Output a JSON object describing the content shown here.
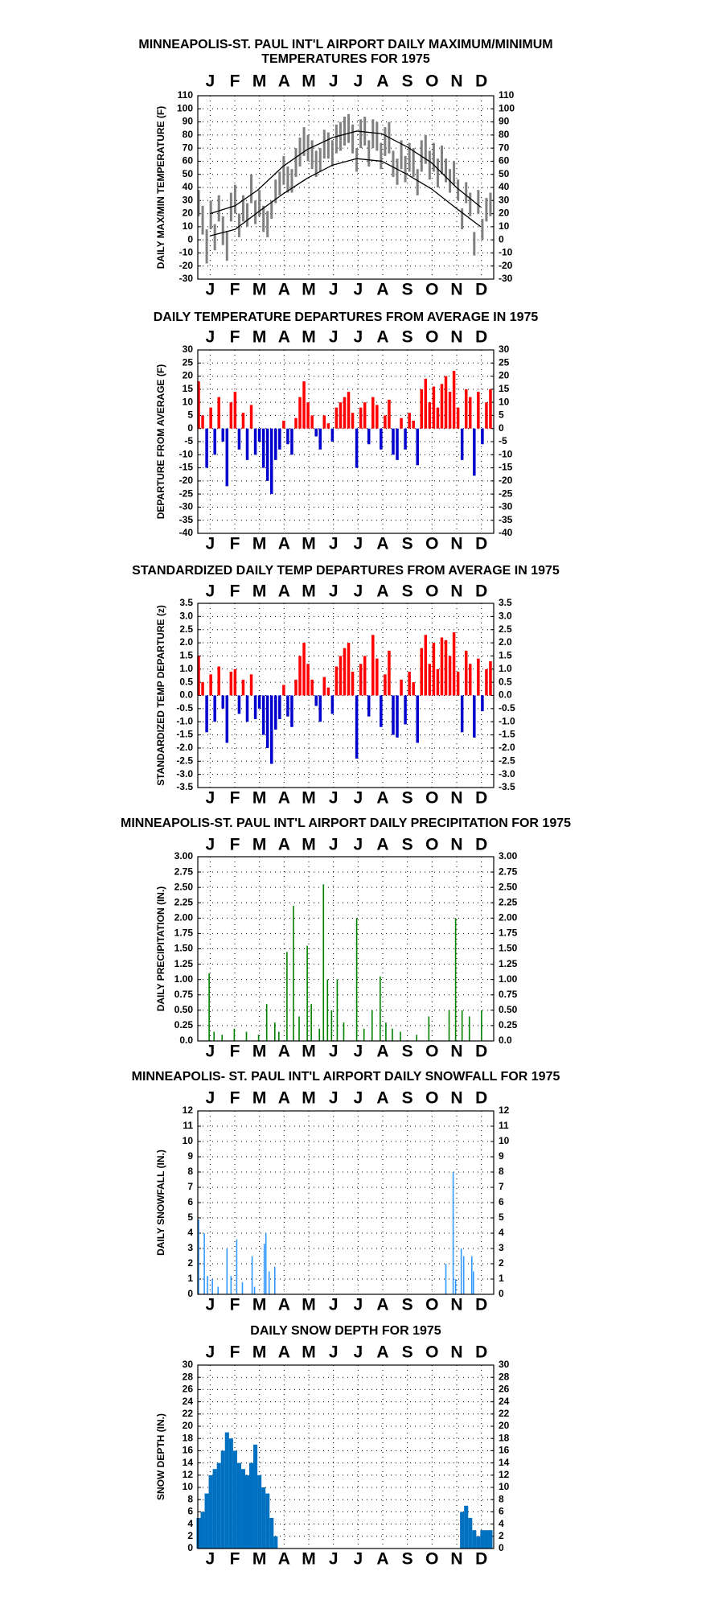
{
  "chart_data": [
    {
      "type": "range",
      "title": [
        "MINNEAPOLIS-ST. PAUL INT'L AIRPORT DAILY MAXIMUM/MINIMUM",
        "TEMPERATURES FOR 1975"
      ],
      "y_label": "DAILY MAX/MIN TEMPERATURE (F)",
      "categories": [
        "J",
        "F",
        "M",
        "A",
        "M",
        "J",
        "J",
        "A",
        "S",
        "O",
        "N",
        "D"
      ],
      "xlim": [
        0,
        365
      ],
      "ylim": [
        -30,
        110
      ],
      "yticks": [
        -30,
        -20,
        -10,
        0,
        10,
        20,
        30,
        40,
        50,
        60,
        70,
        80,
        90,
        100,
        110
      ],
      "x": [
        1,
        6,
        11,
        16,
        21,
        26,
        31,
        36,
        41,
        46,
        51,
        56,
        61,
        66,
        71,
        76,
        81,
        86,
        91,
        96,
        101,
        106,
        111,
        116,
        121,
        126,
        131,
        136,
        141,
        146,
        151,
        156,
        161,
        166,
        171,
        176,
        181,
        186,
        191,
        196,
        201,
        206,
        211,
        216,
        221,
        226,
        231,
        236,
        241,
        246,
        251,
        256,
        261,
        266,
        271,
        276,
        281,
        286,
        291,
        296,
        301,
        306,
        311,
        316,
        321,
        326,
        331,
        336,
        341,
        346,
        351,
        356,
        361
      ],
      "series": [
        {
          "color": "#808080",
          "values": [
            38,
            26,
            8,
            30,
            12,
            34,
            18,
            6,
            36,
            42,
            20,
            34,
            28,
            50,
            30,
            38,
            26,
            22,
            30,
            46,
            52,
            64,
            56,
            54,
            70,
            78,
            86,
            80,
            76,
            68,
            70,
            84,
            82,
            76,
            88,
            90,
            94,
            96,
            88,
            70,
            92,
            94,
            76,
            92,
            90,
            74,
            86,
            90,
            68,
            62,
            76,
            64,
            74,
            70,
            54,
            76,
            80,
            68,
            74,
            62,
            72,
            62,
            54,
            60,
            46,
            24,
            44,
            36,
            6,
            38,
            16,
            32,
            36
          ]
        },
        {
          "color": "#808080",
          "values": [
            18,
            4,
            -18,
            8,
            -8,
            14,
            -4,
            -16,
            14,
            20,
            2,
            14,
            10,
            28,
            12,
            18,
            6,
            2,
            16,
            28,
            34,
            42,
            36,
            36,
            48,
            56,
            64,
            60,
            54,
            48,
            52,
            62,
            62,
            56,
            66,
            68,
            72,
            74,
            66,
            52,
            70,
            72,
            56,
            70,
            68,
            54,
            64,
            66,
            48,
            42,
            54,
            44,
            52,
            48,
            34,
            52,
            58,
            46,
            52,
            40,
            50,
            44,
            36,
            42,
            30,
            8,
            28,
            18,
            -12,
            20,
            0,
            14,
            18
          ]
        }
      ],
      "normals": {
        "x": [
          15,
          46,
          74,
          105,
          135,
          166,
          196,
          227,
          258,
          288,
          319,
          349
        ],
        "series": [
          {
            "color": "#000000",
            "values": [
              20,
              26,
              38,
              56,
              69,
              78,
              83,
              81,
              71,
              59,
              40,
              25
            ]
          },
          {
            "color": "#000000",
            "values": [
              3,
              8,
              21,
              35,
              47,
              57,
              62,
              60,
              50,
              39,
              24,
              10
            ]
          }
        ]
      }
    },
    {
      "type": "bar",
      "title": "DAILY TEMPERATURE DEPARTURES FROM AVERAGE IN 1975",
      "y_label": "DEPARTURE FROM AVERAGE (F)",
      "categories": [
        "J",
        "F",
        "M",
        "A",
        "M",
        "J",
        "J",
        "A",
        "S",
        "O",
        "N",
        "D"
      ],
      "xlim": [
        0,
        365
      ],
      "ylim": [
        -40,
        30
      ],
      "yticks": [
        -40,
        -35,
        -30,
        -25,
        -20,
        -15,
        -10,
        -5,
        0,
        5,
        10,
        15,
        20,
        25,
        30
      ],
      "color": "#ff0000",
      "negative_color": "#0000cc",
      "x": [
        1,
        6,
        11,
        16,
        21,
        26,
        31,
        36,
        41,
        46,
        51,
        56,
        61,
        66,
        71,
        76,
        81,
        86,
        91,
        96,
        101,
        106,
        111,
        116,
        121,
        126,
        131,
        136,
        141,
        146,
        151,
        156,
        161,
        166,
        171,
        176,
        181,
        186,
        191,
        196,
        201,
        206,
        211,
        216,
        221,
        226,
        231,
        236,
        241,
        246,
        251,
        256,
        261,
        266,
        271,
        276,
        281,
        286,
        291,
        296,
        301,
        306,
        311,
        316,
        321,
        326,
        331,
        336,
        341,
        346,
        351,
        356,
        361
      ],
      "values": [
        18,
        5,
        -15,
        8,
        -10,
        12,
        -5,
        -22,
        10,
        14,
        -8,
        6,
        -12,
        9,
        -10,
        -5,
        -15,
        -20,
        -25,
        -12,
        -8,
        3,
        -6,
        -10,
        4,
        12,
        18,
        10,
        5,
        -3,
        -8,
        5,
        2,
        -5,
        8,
        10,
        12,
        14,
        6,
        -15,
        8,
        10,
        -6,
        12,
        9,
        -8,
        5,
        11,
        -10,
        -12,
        4,
        -8,
        6,
        3,
        -14,
        15,
        19,
        10,
        16,
        8,
        17,
        20,
        14,
        22,
        8,
        -12,
        15,
        12,
        -18,
        14,
        -6,
        10,
        15
      ]
    },
    {
      "type": "bar",
      "title": "STANDARDIZED DAILY TEMP DEPARTURES FROM AVERAGE IN 1975",
      "y_label": "STANDARDIZED TEMP DEPARTURE (z)",
      "categories": [
        "J",
        "F",
        "M",
        "A",
        "M",
        "J",
        "J",
        "A",
        "S",
        "O",
        "N",
        "D"
      ],
      "xlim": [
        0,
        365
      ],
      "ylim": [
        -3.5,
        3.5
      ],
      "yticks": [
        -3.5,
        {
          "value": -3,
          "label": "-3.0"
        },
        -2.5,
        {
          "value": -2,
          "label": "-2.0"
        },
        -1.5,
        {
          "value": -1,
          "label": "-1.0"
        },
        -0.5,
        {
          "value": 0,
          "label": "0.0"
        },
        0.5,
        {
          "value": 1,
          "label": "1.0"
        },
        1.5,
        {
          "value": 2,
          "label": "2.0"
        },
        2.5,
        {
          "value": 3,
          "label": "3.0"
        },
        3.5
      ],
      "color": "#ff0000",
      "negative_color": "#0000cc",
      "x": [
        1,
        6,
        11,
        16,
        21,
        26,
        31,
        36,
        41,
        46,
        51,
        56,
        61,
        66,
        71,
        76,
        81,
        86,
        91,
        96,
        101,
        106,
        111,
        116,
        121,
        126,
        131,
        136,
        141,
        146,
        151,
        156,
        161,
        166,
        171,
        176,
        181,
        186,
        191,
        196,
        201,
        206,
        211,
        216,
        221,
        226,
        231,
        236,
        241,
        246,
        251,
        256,
        261,
        266,
        271,
        276,
        281,
        286,
        291,
        296,
        301,
        306,
        311,
        316,
        321,
        326,
        331,
        336,
        341,
        346,
        351,
        356,
        361
      ],
      "values": [
        1.5,
        0.5,
        -1.4,
        0.8,
        -1.0,
        1.1,
        -0.5,
        -1.8,
        0.9,
        1.0,
        -0.7,
        0.6,
        -1.0,
        0.8,
        -0.9,
        -0.5,
        -1.5,
        -2.0,
        -2.6,
        -1.3,
        -0.9,
        0.4,
        -0.8,
        -1.2,
        0.6,
        1.5,
        2.0,
        1.2,
        0.6,
        -0.4,
        -1.0,
        0.7,
        0.3,
        -0.7,
        1.1,
        1.5,
        1.8,
        2.0,
        0.9,
        -2.4,
        1.2,
        1.5,
        -0.8,
        2.3,
        1.4,
        -1.2,
        0.8,
        1.7,
        -1.5,
        -1.6,
        0.6,
        -1.1,
        0.9,
        0.5,
        -1.8,
        1.8,
        2.3,
        1.2,
        2.0,
        1.0,
        2.2,
        2.1,
        1.5,
        2.4,
        0.9,
        -1.4,
        1.7,
        1.2,
        -1.6,
        1.4,
        -0.6,
        1.0,
        1.3
      ]
    },
    {
      "type": "bar",
      "title": "MINNEAPOLIS-ST. PAUL INT'L AIRPORT DAILY PRECIPITATION FOR 1975",
      "y_label": "DAILY PRECIPITATION (IN.)",
      "categories": [
        "J",
        "F",
        "M",
        "A",
        "M",
        "J",
        "J",
        "A",
        "S",
        "O",
        "N",
        "D"
      ],
      "xlim": [
        0,
        365
      ],
      "ylim": [
        0,
        3
      ],
      "yticks": [
        {
          "value": 0,
          "label": "0.0"
        },
        0.25,
        {
          "value": 0.5,
          "label": "0.50"
        },
        0.75,
        {
          "value": 1,
          "label": "1.00"
        },
        1.25,
        {
          "value": 1.5,
          "label": "1.50"
        },
        1.75,
        {
          "value": 2,
          "label": "2.00"
        },
        2.25,
        {
          "value": 2.5,
          "label": "2.50"
        },
        2.75,
        {
          "value": 3,
          "label": "3.00"
        }
      ],
      "color": "#008000",
      "x": [
        14,
        20,
        30,
        45,
        60,
        75,
        85,
        95,
        100,
        110,
        118,
        125,
        135,
        140,
        150,
        155,
        160,
        165,
        172,
        180,
        196,
        205,
        215,
        225,
        232,
        240,
        250,
        270,
        285,
        310,
        318,
        326,
        335,
        350
      ],
      "values": [
        1.1,
        0.15,
        0.1,
        0.2,
        0.15,
        0.1,
        0.6,
        0.3,
        0.15,
        1.45,
        2.2,
        0.4,
        1.55,
        0.6,
        0.2,
        2.55,
        1.0,
        0.5,
        1.0,
        0.3,
        2.0,
        0.2,
        0.5,
        1.05,
        0.3,
        0.2,
        0.15,
        0.1,
        0.4,
        0.5,
        2.0,
        0.5,
        0.4,
        0.5
      ]
    },
    {
      "type": "bar",
      "title": "MINNEAPOLIS- ST. PAUL INT'L AIRPORT DAILY SNOWFALL FOR 1975",
      "y_label": "DAILY SNOWFALL (IN.)",
      "categories": [
        "J",
        "F",
        "M",
        "A",
        "M",
        "J",
        "J",
        "A",
        "S",
        "O",
        "N",
        "D"
      ],
      "xlim": [
        0,
        365
      ],
      "ylim": [
        0,
        12
      ],
      "yticks": [
        0,
        1,
        2,
        3,
        4,
        5,
        6,
        7,
        8,
        9,
        10,
        11,
        12
      ],
      "color": "#3399ff",
      "x": [
        1,
        8,
        12,
        18,
        25,
        36,
        41,
        48,
        55,
        67,
        70,
        82,
        84,
        88,
        95,
        306,
        315,
        318,
        325,
        328,
        338,
        340
      ],
      "values": [
        4.9,
        4.0,
        1.2,
        1.0,
        0.5,
        3.0,
        1.2,
        3.6,
        0.8,
        2.5,
        0.5,
        3.3,
        4.0,
        1.5,
        1.8,
        2.0,
        8.0,
        1.0,
        3.0,
        2.5,
        2.5,
        1.5
      ]
    },
    {
      "type": "bar",
      "title": "DAILY SNOW DEPTH FOR 1975",
      "y_label": "SNOW DEPTH (IN.)",
      "categories": [
        "J",
        "F",
        "M",
        "A",
        "M",
        "J",
        "J",
        "A",
        "S",
        "O",
        "N",
        "D"
      ],
      "xlim": [
        0,
        365
      ],
      "ylim": [
        0,
        30
      ],
      "yticks": [
        0,
        2,
        4,
        6,
        8,
        10,
        12,
        14,
        16,
        18,
        20,
        22,
        24,
        26,
        28,
        30
      ],
      "color": "#0070c0",
      "x": [
        1,
        6,
        11,
        16,
        21,
        26,
        31,
        36,
        41,
        46,
        51,
        56,
        61,
        66,
        71,
        76,
        81,
        86,
        91,
        96,
        101,
        106,
        111,
        116,
        121,
        126,
        131,
        136,
        141,
        146,
        151,
        156,
        161,
        166,
        171,
        176,
        181,
        186,
        191,
        196,
        201,
        206,
        211,
        216,
        221,
        226,
        231,
        236,
        241,
        246,
        251,
        256,
        261,
        266,
        271,
        276,
        281,
        286,
        291,
        296,
        301,
        306,
        311,
        316,
        321,
        326,
        331,
        336,
        341,
        346,
        351,
        356,
        361
      ],
      "values": [
        5,
        6,
        9,
        12,
        13,
        14,
        16,
        19,
        18,
        16,
        14,
        13,
        12,
        14,
        17,
        12,
        10,
        9,
        5,
        2,
        0,
        0,
        0,
        0,
        0,
        0,
        0,
        0,
        0,
        0,
        0,
        0,
        0,
        0,
        0,
        0,
        0,
        0,
        0,
        0,
        0,
        0,
        0,
        0,
        0,
        0,
        0,
        0,
        0,
        0,
        0,
        0,
        0,
        0,
        0,
        0,
        0,
        0,
        0,
        0,
        0,
        0,
        0,
        0,
        0,
        6,
        7,
        5,
        3,
        2,
        3,
        3,
        3
      ]
    }
  ]
}
